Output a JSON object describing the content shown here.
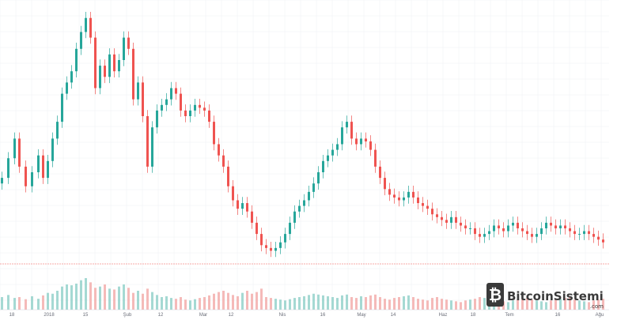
{
  "chart_data": {
    "type": "candlestick",
    "title": "",
    "xlabel": "",
    "ylabel": "",
    "grid": true,
    "legend": "none",
    "x_ticks": [
      "18",
      "2018",
      "15",
      "Şub",
      "12",
      "Mar",
      "12",
      "Nis",
      "16",
      "May",
      "14",
      "Haz",
      "18",
      "Tem",
      "16",
      "Ağu"
    ],
    "ylim": [
      0,
      100
    ],
    "series": [
      {
        "x": [
          0,
          8,
          16,
          22,
          30,
          38,
          46,
          52,
          58,
          64,
          70,
          76,
          82,
          88,
          94,
          100,
          106,
          112,
          118,
          124,
          130,
          136,
          142,
          148,
          154,
          160,
          166,
          172,
          178,
          184,
          190,
          196,
          202,
          208,
          214,
          220,
          226,
          232,
          238,
          244,
          250,
          256,
          262,
          268,
          274,
          280,
          286,
          292,
          298,
          304,
          310,
          316,
          322,
          328,
          334,
          340,
          346,
          352,
          358,
          364,
          370,
          376,
          382,
          388,
          394,
          400,
          406,
          412,
          418,
          424,
          430,
          436,
          442,
          448,
          454,
          460,
          466,
          472,
          478,
          484,
          490,
          496,
          502,
          508,
          514,
          520,
          526,
          532,
          538,
          544,
          550,
          556,
          562,
          568,
          574,
          580,
          586,
          592,
          598,
          604,
          610,
          616,
          622,
          628,
          634,
          640,
          646,
          652,
          658,
          664,
          670,
          676,
          682,
          688,
          694,
          700,
          706,
          712,
          718,
          724,
          730,
          736,
          742,
          748,
          754,
          760
        ],
        "close": [
          38,
          45,
          52,
          42,
          35,
          40,
          46,
          38,
          44,
          52,
          58,
          68,
          72,
          76,
          84,
          90,
          95,
          88,
          70,
          78,
          74,
          82,
          76,
          80,
          88,
          84,
          66,
          72,
          60,
          42,
          56,
          62,
          64,
          66,
          70,
          68,
          62,
          60,
          62,
          64,
          63,
          62,
          58,
          50,
          46,
          42,
          35,
          30,
          27,
          29,
          26,
          22,
          18,
          14,
          13,
          12,
          13,
          15,
          18,
          22,
          26,
          28,
          30,
          33,
          36,
          40,
          44,
          46,
          48,
          50,
          56,
          58,
          52,
          50,
          52,
          51,
          48,
          42,
          38,
          34,
          32,
          31,
          30,
          31,
          33,
          31,
          29,
          28,
          27,
          25,
          24,
          23,
          22,
          24,
          22,
          21,
          20,
          20,
          18,
          17,
          18,
          19,
          21,
          20,
          19,
          21,
          22,
          20,
          19,
          18,
          17,
          18,
          20,
          22,
          21,
          20,
          21,
          20,
          19,
          18,
          18,
          19,
          18,
          17,
          16,
          15
        ],
        "volume": [
          30,
          35,
          28,
          30,
          25,
          32,
          26,
          34,
          40,
          38,
          45,
          55,
          60,
          58,
          62,
          70,
          75,
          65,
          52,
          55,
          60,
          50,
          48,
          55,
          60,
          52,
          40,
          45,
          38,
          50,
          42,
          35,
          30,
          32,
          28,
          26,
          30,
          24,
          22,
          25,
          28,
          30,
          34,
          38,
          42,
          45,
          40,
          35,
          32,
          40,
          45,
          38,
          42,
          50,
          30,
          28,
          26,
          24,
          22,
          25,
          28,
          30,
          32,
          35,
          38,
          36,
          34,
          32,
          30,
          28,
          34,
          36,
          30,
          28,
          32,
          30,
          34,
          36,
          30,
          26,
          24,
          28,
          30,
          32,
          34,
          30,
          26,
          24,
          22,
          28,
          30,
          26,
          24,
          22,
          20,
          18,
          22,
          24,
          26,
          30,
          28,
          26,
          24,
          22,
          20,
          18,
          22,
          24,
          26,
          28,
          24,
          22,
          20,
          18,
          22,
          24,
          26,
          28,
          30,
          24,
          22,
          20,
          18,
          22,
          24,
          26
        ]
      }
    ]
  },
  "branding": {
    "logo_main": "BitcoinSistemi",
    "logo_sub": ".com"
  },
  "colors": {
    "up": "#26a69a",
    "down": "#ef5350",
    "grid": "#eef0f3",
    "axis": "#d1d4dc",
    "volume_up": "#8fd0c8",
    "volume_down": "#f3a9a8"
  }
}
